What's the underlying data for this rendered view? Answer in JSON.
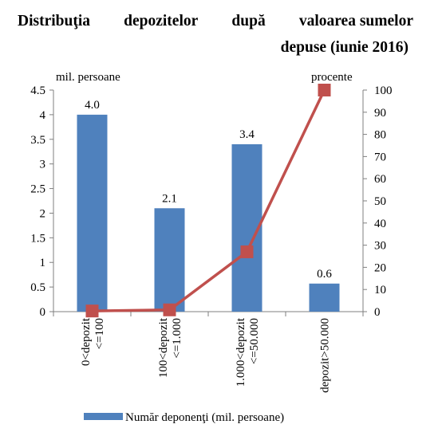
{
  "title": {
    "line1": [
      "Distribuţia",
      "depozitelor",
      "după",
      "valoarea sumelor"
    ],
    "line2": "depuse (iunie 2016)"
  },
  "chart_data": {
    "type": "bar",
    "title": "Distribuţia depozitelor după valoarea sumelor depuse (iunie 2016)",
    "categories": [
      [
        "0<depozit",
        "<=100"
      ],
      [
        "100<depozit",
        "<=1.000"
      ],
      [
        "1.000<depozit",
        "<=50.000"
      ],
      [
        "depozit>50.000"
      ]
    ],
    "series": [
      {
        "name": "Număr deponenţi (mil. persoane)",
        "type": "bar",
        "axis": "left",
        "color": "#4F81BD",
        "values": [
          4.0,
          2.1,
          3.4,
          0.57
        ],
        "labels": [
          "4.0",
          "2.1",
          "3.4",
          "0.6"
        ]
      },
      {
        "type": "line",
        "axis": "right",
        "color": "#C0504D",
        "values": [
          0.3,
          0.8,
          27,
          100
        ]
      }
    ],
    "y_left": {
      "label": "mil. persoane",
      "range": [
        0,
        4.5
      ],
      "ticks": [
        "0",
        "0.5",
        "1",
        "1.5",
        "2",
        "2.5",
        "3",
        "3.5",
        "4",
        "4.5"
      ]
    },
    "y_right": {
      "label": "procente",
      "range": [
        0,
        100
      ],
      "ticks": [
        "0",
        "10",
        "20",
        "30",
        "40",
        "50",
        "60",
        "70",
        "80",
        "90",
        "100"
      ]
    },
    "grid": false,
    "legend_position": "bottom"
  }
}
